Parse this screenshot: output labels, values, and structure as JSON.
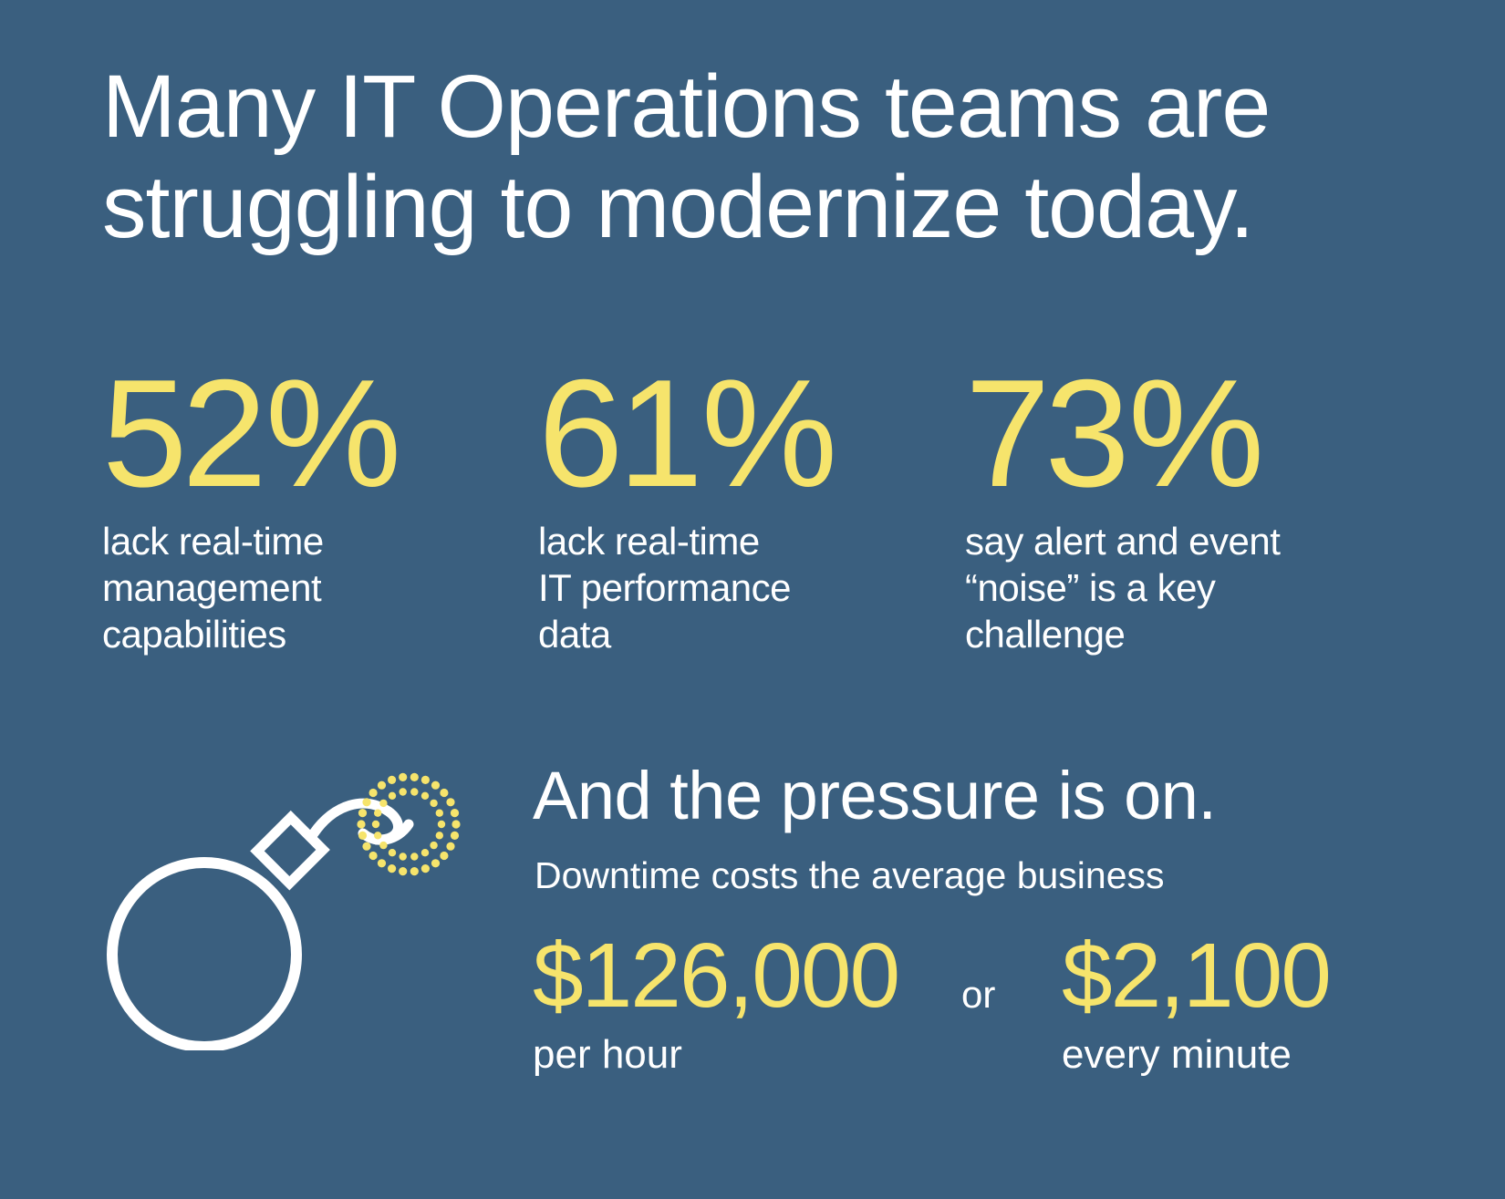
{
  "headline": {
    "line1": "Many IT Operations teams are",
    "line2": "struggling to modernize today."
  },
  "stats": [
    {
      "value": "52",
      "unit": "%",
      "lines": [
        "lack real-time",
        "management",
        "capabilities"
      ]
    },
    {
      "value": "61",
      "unit": "%",
      "lines": [
        "lack real-time",
        "IT performance",
        "data"
      ]
    },
    {
      "value": "73",
      "unit": "%",
      "lines": [
        "say alert and event",
        "“noise” is a key",
        "challenge"
      ]
    }
  ],
  "pressure": {
    "title": "And the pressure is on.",
    "subtitle": "Downtime costs the average business",
    "hourly": {
      "currency": "$",
      "amount": "126,000",
      "unit": "per hour"
    },
    "connector": "or",
    "minute": {
      "currency": "$",
      "amount": "2,100",
      "unit": "every minute"
    }
  },
  "colors": {
    "background": "#3a5f7f",
    "accent": "#f6e46c",
    "text": "#ffffff"
  },
  "icons": [
    "bomb-icon"
  ]
}
